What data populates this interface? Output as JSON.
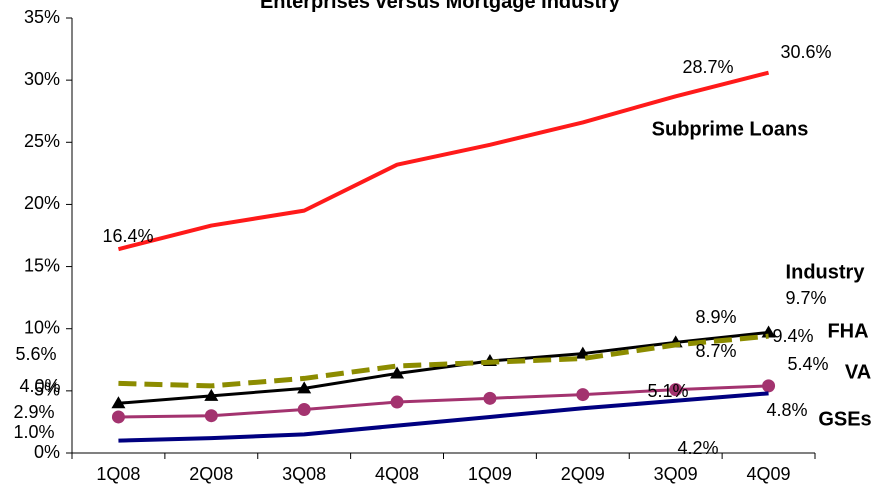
{
  "chart_data": {
    "type": "line",
    "title": "Enterprises versus Mortgage Industry",
    "categories": [
      "1Q08",
      "2Q08",
      "3Q08",
      "4Q08",
      "1Q09",
      "2Q09",
      "3Q09",
      "4Q09"
    ],
    "ylim": [
      0,
      35
    ],
    "yticks": [
      {
        "value": 0,
        "label": "0%"
      },
      {
        "value": 5,
        "label": "5%"
      },
      {
        "value": 10,
        "label": "10%"
      },
      {
        "value": 15,
        "label": "15%"
      },
      {
        "value": 20,
        "label": "20%"
      },
      {
        "value": 25,
        "label": "25%"
      },
      {
        "value": 30,
        "label": "30%"
      },
      {
        "value": 35,
        "label": "35%"
      }
    ],
    "grid": false,
    "series": [
      {
        "name": "Subprime Loans",
        "color": "#ff1a1a",
        "width": 4,
        "dash": false,
        "marker": null,
        "values": [
          16.4,
          18.3,
          19.5,
          23.2,
          24.8,
          26.6,
          28.7,
          30.6
        ],
        "value_labels": [
          "16.4%",
          null,
          null,
          null,
          null,
          null,
          "28.7%",
          "30.6%"
        ]
      },
      {
        "name": "Industry",
        "color": "#000000",
        "width": 3,
        "dash": false,
        "marker": "triangle",
        "values": [
          4.0,
          4.6,
          5.2,
          6.4,
          7.4,
          8.0,
          8.9,
          9.7
        ],
        "value_labels": [
          "4.0%",
          null,
          null,
          null,
          null,
          null,
          "8.9%",
          "9.7%"
        ]
      },
      {
        "name": "FHA",
        "color": "#8c8c00",
        "width": 5,
        "dash": true,
        "marker": null,
        "values": [
          5.6,
          5.4,
          6.0,
          7.0,
          7.3,
          7.6,
          8.7,
          9.4
        ],
        "value_labels": [
          "5.6%",
          null,
          null,
          null,
          null,
          null,
          "8.7%",
          "9.4%"
        ]
      },
      {
        "name": "VA",
        "color": "#a3336f",
        "width": 3,
        "dash": false,
        "marker": "circle",
        "values": [
          2.9,
          3.0,
          3.5,
          4.1,
          4.4,
          4.7,
          5.1,
          5.4
        ],
        "value_labels": [
          "2.9%",
          null,
          null,
          null,
          null,
          null,
          "5.1%",
          "5.4%"
        ]
      },
      {
        "name": "GSEs",
        "color": "#000080",
        "width": 4,
        "dash": false,
        "marker": null,
        "values": [
          1.0,
          1.2,
          1.5,
          2.2,
          2.9,
          3.6,
          4.2,
          4.8
        ],
        "value_labels": [
          "1.0%",
          null,
          null,
          null,
          null,
          null,
          "4.2%",
          "4.8%"
        ]
      }
    ]
  }
}
